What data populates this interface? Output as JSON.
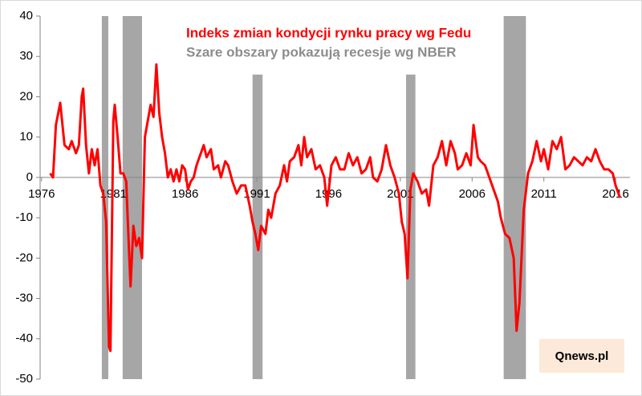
{
  "chart_data": {
    "type": "line",
    "title": "Indeks zmian kondycji rynku pracy wg Fedu",
    "subtitle": "Szare obszary pokazują recesje wg NBER",
    "source": "Qnews.pl",
    "color": "#ff0000",
    "recession_color": "#a6a6a6",
    "recessions": [
      {
        "start": 1980.2,
        "end": 1980.65,
        "top": 40
      },
      {
        "start": 1981.65,
        "end": 1983.0,
        "top": 40
      },
      {
        "start": 1990.7,
        "end": 1991.4,
        "top": 25.5
      },
      {
        "start": 2001.4,
        "end": 2002.05,
        "top": 25.5
      },
      {
        "start": 2008.2,
        "end": 2009.75,
        "top": 40
      }
    ],
    "x": [
      1976.6,
      1976.8,
      1977.0,
      1977.3,
      1977.6,
      1977.9,
      1978.1,
      1978.4,
      1978.6,
      1978.8,
      1978.9,
      1979.1,
      1979.3,
      1979.5,
      1979.7,
      1979.9,
      1980.1,
      1980.3,
      1980.5,
      1980.7,
      1980.8,
      1981.0,
      1981.1,
      1981.3,
      1981.5,
      1981.7,
      1981.9,
      1982.0,
      1982.2,
      1982.4,
      1982.6,
      1982.8,
      1983.0,
      1983.2,
      1983.4,
      1983.6,
      1983.8,
      1984.0,
      1984.2,
      1984.4,
      1984.6,
      1984.8,
      1985.0,
      1985.2,
      1985.4,
      1985.6,
      1985.8,
      1986.0,
      1986.2,
      1986.4,
      1986.6,
      1986.8,
      1987.0,
      1987.3,
      1987.5,
      1987.8,
      1988.0,
      1988.3,
      1988.5,
      1988.8,
      1989.0,
      1989.3,
      1989.6,
      1989.9,
      1990.2,
      1990.5,
      1990.7,
      1990.9,
      1991.1,
      1991.3,
      1991.6,
      1991.8,
      1992.0,
      1992.3,
      1992.6,
      1992.9,
      1993.1,
      1993.3,
      1993.6,
      1993.9,
      1994.1,
      1994.3,
      1994.5,
      1994.8,
      1995.1,
      1995.4,
      1995.7,
      1995.9,
      1996.2,
      1996.5,
      1996.8,
      1997.1,
      1997.4,
      1997.7,
      1998.0,
      1998.3,
      1998.6,
      1998.9,
      1999.1,
      1999.4,
      1999.7,
      2000.0,
      2000.3,
      2000.6,
      2000.9,
      2001.1,
      2001.3,
      2001.5,
      2001.7,
      2001.9,
      2002.2,
      2002.5,
      2002.8,
      2003.0,
      2003.3,
      2003.6,
      2003.9,
      2004.2,
      2004.5,
      2004.8,
      2005.0,
      2005.3,
      2005.6,
      2005.9,
      2006.1,
      2006.4,
      2006.6,
      2006.9,
      2007.2,
      2007.5,
      2007.8,
      2008.0,
      2008.3,
      2008.6,
      2008.9,
      2009.1,
      2009.3,
      2009.6,
      2009.9,
      2010.2,
      2010.5,
      2010.8,
      2011.0,
      2011.3,
      2011.6,
      2011.9,
      2012.2,
      2012.5,
      2012.8,
      2013.1,
      2013.4,
      2013.7,
      2014.0,
      2014.3,
      2014.6,
      2014.9,
      2015.2,
      2015.5,
      2015.8,
      2016.0,
      2016.3
    ],
    "values": [
      1,
      0,
      13,
      18.5,
      8,
      7,
      9,
      6,
      8,
      20,
      22,
      8,
      1,
      7,
      3,
      7,
      -2,
      -4,
      -11,
      -42,
      -43,
      14,
      18,
      10,
      1,
      1,
      -1,
      -10,
      -27,
      -12,
      -17,
      -15,
      -20,
      10,
      14,
      18,
      15,
      28,
      16,
      10,
      6,
      0,
      2,
      -1,
      2,
      -1,
      3,
      2,
      -3,
      -1,
      0,
      3,
      5,
      8,
      5,
      7,
      2,
      3,
      0,
      4,
      3,
      -1,
      -4,
      -2,
      -2,
      -7,
      -11,
      -14,
      -18,
      -12,
      -14,
      -8,
      -10,
      -4,
      -2,
      3,
      -1,
      4,
      5,
      8,
      3,
      10,
      5,
      7,
      2,
      3,
      0,
      -7,
      3,
      5,
      2,
      2,
      6,
      3,
      5,
      1,
      2,
      5,
      0,
      -1,
      2,
      8,
      3,
      0,
      -4,
      -11,
      -14,
      -25,
      -3,
      1,
      -1,
      -4,
      -3,
      -7,
      3,
      5,
      9,
      3,
      9,
      6,
      2,
      3,
      6,
      3,
      13,
      5,
      4,
      3,
      0,
      -3,
      -6,
      -10,
      -14,
      -15,
      -20,
      -38,
      -31,
      -8,
      1,
      4,
      9,
      4,
      7,
      2,
      9,
      7,
      10,
      2,
      3,
      5,
      4,
      3,
      5,
      4,
      7,
      4,
      2,
      2,
      1,
      -2,
      -5
    ],
    "xlim": [
      1975.9,
      2017
    ],
    "xticks": [
      1976,
      1981,
      1986,
      1991,
      1996,
      2001,
      2006,
      2011,
      2016
    ],
    "ylim": [
      -50,
      40
    ],
    "yticks": [
      -50,
      -40,
      -30,
      -20,
      -10,
      0,
      10,
      20,
      30,
      40
    ]
  }
}
